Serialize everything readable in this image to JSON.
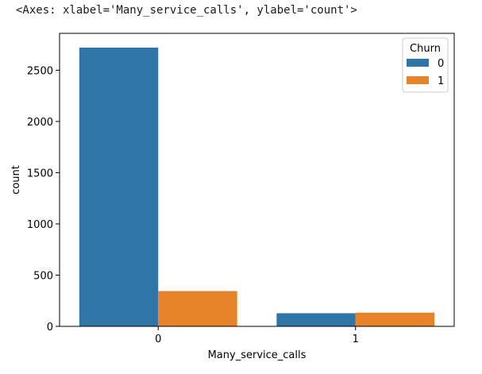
{
  "output": {
    "repr_text": "<Axes: xlabel='Many_service_calls', ylabel='count'>"
  },
  "chart_data": {
    "type": "bar",
    "categories": [
      "0",
      "1"
    ],
    "series": [
      {
        "name": "0",
        "values": [
          2721,
          128
        ],
        "color": "#2f75a8"
      },
      {
        "name": "1",
        "values": [
          344,
          134
        ],
        "color": "#e6822a"
      }
    ],
    "title": "",
    "xlabel": "Many_service_calls",
    "ylabel": "count",
    "ylim": [
      0,
      2860
    ],
    "yticks": [
      0,
      500,
      1000,
      1500,
      2000,
      2500
    ],
    "legend": {
      "title": "Churn",
      "position": "top-right"
    },
    "grid": false
  }
}
